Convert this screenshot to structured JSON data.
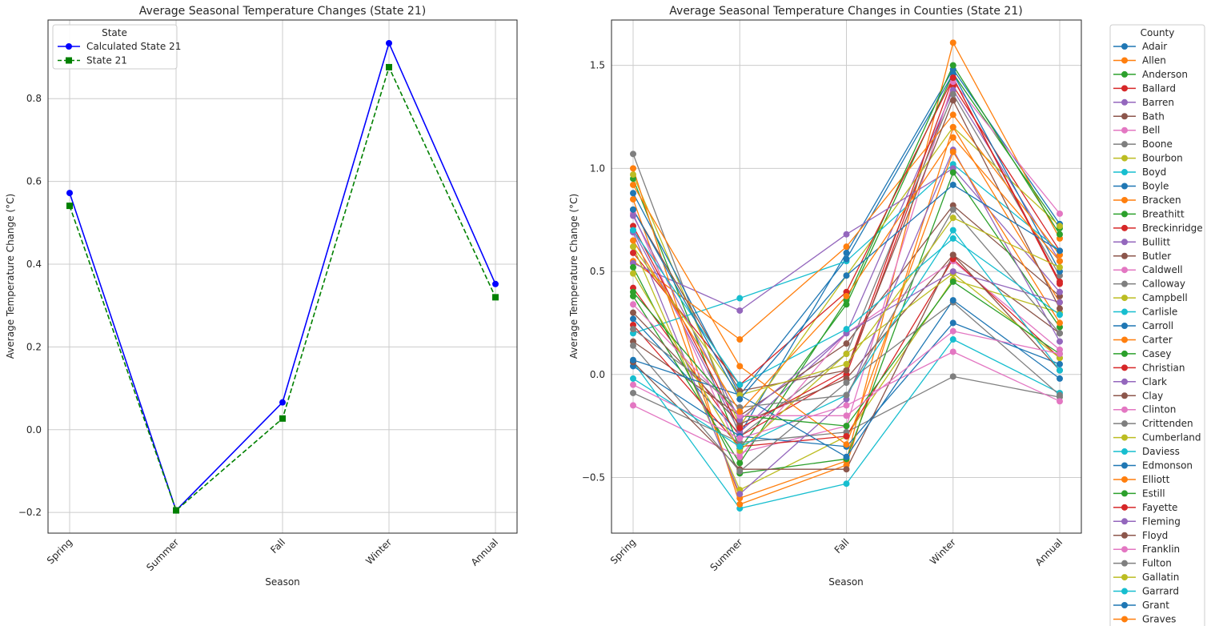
{
  "chart_data": [
    {
      "type": "line",
      "title": "Average Seasonal Temperature Changes (State 21)",
      "xlabel": "Season",
      "ylabel": "Average Temperature Change (°C)",
      "categories": [
        "Spring",
        "Summer",
        "Fall",
        "Winter",
        "Annual"
      ],
      "ylim": [
        -0.25,
        0.99
      ],
      "yticks": [
        -0.2,
        0.0,
        0.2,
        0.4,
        0.6,
        0.8
      ],
      "ytick_labels": [
        "−0.2",
        "0.0",
        "0.2",
        "0.4",
        "0.6",
        "0.8"
      ],
      "grid": true,
      "legend_title": "State",
      "legend_position": "upper-left",
      "series": [
        {
          "name": "Calculated State 21",
          "values": [
            0.572,
            -0.195,
            0.066,
            0.934,
            0.352
          ],
          "color": "#0000ff",
          "linestyle": "solid",
          "marker": "circle"
        },
        {
          "name": "State 21",
          "values": [
            0.541,
            -0.195,
            0.027,
            0.876,
            0.32
          ],
          "color": "#008000",
          "linestyle": "dashed",
          "marker": "square"
        }
      ]
    },
    {
      "type": "line",
      "title": "Average Seasonal Temperature Changes in Counties (State 21)",
      "xlabel": "Season",
      "ylabel": "Average Temperature Change (°C)",
      "categories": [
        "Spring",
        "Summer",
        "Fall",
        "Winter",
        "Annual"
      ],
      "ylim": [
        -0.77,
        1.72
      ],
      "yticks": [
        -0.5,
        0.0,
        0.5,
        1.0,
        1.5
      ],
      "ytick_labels": [
        "−0.5",
        "0.0",
        "0.5",
        "1.0",
        "1.5"
      ],
      "grid": true,
      "legend_title": "County",
      "legend_position": "outside-right",
      "series": [
        {
          "name": "Adair",
          "color": "#1f77b4",
          "values": [
            0.27,
            -0.29,
            0.59,
            1.48,
            0.73
          ]
        },
        {
          "name": "Allen",
          "color": "#ff7f0e",
          "values": [
            0.85,
            -0.6,
            -0.42,
            1.61,
            0.66
          ]
        },
        {
          "name": "Anderson",
          "color": "#2ca02c",
          "values": [
            0.95,
            -0.36,
            0.34,
            1.46,
            0.71
          ]
        },
        {
          "name": "Ballard",
          "color": "#d62728",
          "values": [
            0.42,
            -0.3,
            0.0,
            1.4,
            0.6
          ]
        },
        {
          "name": "Barren",
          "color": "#9467bd",
          "values": [
            0.7,
            -0.28,
            0.2,
            1.38,
            0.55
          ]
        },
        {
          "name": "Bath",
          "color": "#8c564b",
          "values": [
            0.16,
            -0.2,
            0.15,
            0.82,
            0.38
          ]
        },
        {
          "name": "Bell",
          "color": "#e377c2",
          "values": [
            0.78,
            -0.38,
            -0.25,
            1.42,
            0.78
          ]
        },
        {
          "name": "Boone",
          "color": "#7f7f7f",
          "values": [
            1.07,
            -0.3,
            0.1,
            1.36,
            0.48
          ]
        },
        {
          "name": "Bourbon",
          "color": "#bcbd22",
          "values": [
            0.97,
            -0.25,
            0.48,
            1.2,
            0.72
          ]
        },
        {
          "name": "Boyd",
          "color": "#17becf",
          "values": [
            0.2,
            0.37,
            0.55,
            1.02,
            0.6
          ]
        },
        {
          "name": "Boyle",
          "color": "#1f77b4",
          "values": [
            0.88,
            -0.1,
            0.56,
            1.46,
            0.5
          ]
        },
        {
          "name": "Bracken",
          "color": "#ff7f0e",
          "values": [
            0.55,
            0.17,
            0.62,
            1.26,
            0.58
          ]
        },
        {
          "name": "Breathitt",
          "color": "#2ca02c",
          "values": [
            0.38,
            -0.43,
            0.36,
            1.5,
            0.68
          ]
        },
        {
          "name": "Breckinridge",
          "color": "#d62728",
          "values": [
            0.59,
            -0.05,
            0.4,
            1.44,
            0.45
          ]
        },
        {
          "name": "Bullitt",
          "color": "#9467bd",
          "values": [
            0.54,
            0.31,
            0.68,
            1.0,
            0.4
          ]
        },
        {
          "name": "Butler",
          "color": "#8c564b",
          "values": [
            0.3,
            -0.24,
            -0.02,
            0.58,
            0.2
          ]
        },
        {
          "name": "Caldwell",
          "color": "#e377c2",
          "values": [
            -0.15,
            -0.4,
            0.2,
            0.55,
            0.12
          ]
        },
        {
          "name": "Calloway",
          "color": "#7f7f7f",
          "values": [
            -0.09,
            -0.33,
            -0.28,
            -0.01,
            -0.11
          ]
        },
        {
          "name": "Campbell",
          "color": "#bcbd22",
          "values": [
            0.62,
            -0.56,
            -0.3,
            0.46,
            0.3
          ]
        },
        {
          "name": "Carlisle",
          "color": "#17becf",
          "values": [
            0.06,
            -0.65,
            -0.53,
            0.17,
            -0.09
          ]
        },
        {
          "name": "Carroll",
          "color": "#1f77b4",
          "values": [
            0.04,
            -0.3,
            -0.35,
            0.25,
            0.05
          ]
        },
        {
          "name": "Carter",
          "color": "#ff7f0e",
          "values": [
            1.0,
            -0.63,
            -0.44,
            1.2,
            0.35
          ]
        },
        {
          "name": "Casey",
          "color": "#2ca02c",
          "values": [
            0.52,
            -0.48,
            -0.41,
            0.98,
            0.23
          ]
        },
        {
          "name": "Christian",
          "color": "#d62728",
          "values": [
            0.24,
            -0.35,
            -0.3,
            0.56,
            0.08
          ]
        },
        {
          "name": "Clark",
          "color": "#9467bd",
          "values": [
            0.69,
            -0.58,
            -0.12,
            1.09,
            0.16
          ]
        },
        {
          "name": "Clay",
          "color": "#8c564b",
          "values": [
            0.06,
            -0.46,
            -0.46,
            0.58,
            0.02
          ]
        },
        {
          "name": "Clinton",
          "color": "#e377c2",
          "values": [
            -0.05,
            -0.31,
            -0.15,
            0.11,
            -0.13
          ]
        },
        {
          "name": "Crittenden",
          "color": "#7f7f7f",
          "values": [
            0.14,
            -0.47,
            -0.04,
            0.35,
            -0.1
          ]
        },
        {
          "name": "Cumberland",
          "color": "#bcbd22",
          "values": [
            0.49,
            -0.37,
            0.1,
            0.49,
            0.08
          ]
        },
        {
          "name": "Daviess",
          "color": "#17becf",
          "values": [
            -0.02,
            -0.35,
            -0.1,
            0.7,
            0.02
          ]
        },
        {
          "name": "Edmonson",
          "color": "#1f77b4",
          "values": [
            0.07,
            -0.1,
            -0.4,
            0.36,
            -0.02
          ]
        },
        {
          "name": "Elliott",
          "color": "#ff7f0e",
          "values": [
            0.92,
            0.04,
            -0.34,
            1.08,
            0.25
          ]
        },
        {
          "name": "Estill",
          "color": "#2ca02c",
          "values": [
            0.4,
            -0.2,
            -0.25,
            0.45,
            0.1
          ]
        },
        {
          "name": "Fayette",
          "color": "#d62728",
          "values": [
            0.72,
            -0.26,
            0.02,
            1.44,
            0.44
          ]
        },
        {
          "name": "Fleming",
          "color": "#9467bd",
          "values": [
            0.77,
            -0.22,
            0.2,
            0.5,
            0.35
          ]
        },
        {
          "name": "Floyd",
          "color": "#8c564b",
          "values": [
            0.8,
            -0.08,
            0.02,
            1.33,
            0.32
          ]
        },
        {
          "name": "Franklin",
          "color": "#e377c2",
          "values": [
            0.34,
            -0.2,
            -0.2,
            0.21,
            0.1
          ]
        },
        {
          "name": "Fulton",
          "color": "#7f7f7f",
          "values": [
            0.22,
            -0.16,
            -0.1,
            0.8,
            0.2
          ]
        },
        {
          "name": "Gallatin",
          "color": "#bcbd22",
          "values": [
            0.62,
            -0.1,
            0.05,
            0.76,
            0.52
          ]
        },
        {
          "name": "Garrard",
          "color": "#17becf",
          "values": [
            0.7,
            -0.05,
            0.22,
            0.66,
            0.29
          ]
        },
        {
          "name": "Grant",
          "color": "#1f77b4",
          "values": [
            0.8,
            -0.12,
            0.48,
            0.92,
            0.6
          ]
        },
        {
          "name": "Graves",
          "color": "#ff7f0e",
          "values": [
            0.65,
            -0.18,
            0.38,
            1.15,
            0.55
          ]
        }
      ]
    }
  ]
}
